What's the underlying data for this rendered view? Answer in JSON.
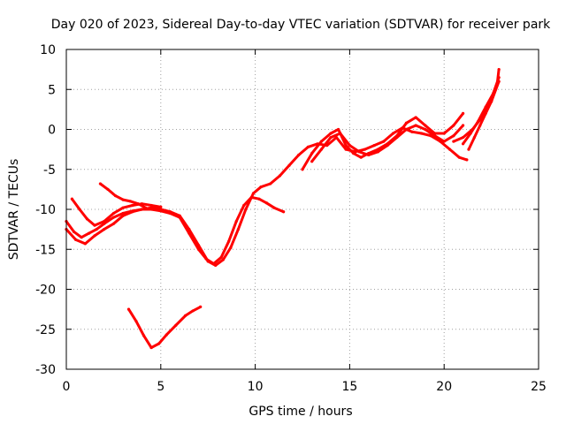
{
  "chart_data": {
    "type": "scatter",
    "title": "Day 020 of 2023, Sidereal Day-to-day VTEC variation (SDTVAR) for receiver park",
    "xlabel": "GPS time / hours",
    "ylabel": "SDTVAR / TECUs",
    "xlim": [
      0,
      25
    ],
    "ylim": [
      -30,
      10
    ],
    "x_ticks": [
      0,
      5,
      10,
      15,
      20,
      25
    ],
    "x_tick_labels": [
      "0",
      "5",
      "10",
      "15",
      "20",
      "25"
    ],
    "y_ticks": [
      -30,
      -25,
      -20,
      -15,
      -10,
      -5,
      0,
      5,
      10
    ],
    "y_tick_labels": [
      "-30",
      "-25",
      "-20",
      "-15",
      "-10",
      "-5",
      "0",
      "5",
      "10"
    ],
    "grid": true,
    "legend": "none",
    "color": "#ff0000",
    "series": [
      {
        "x": [
          0.0,
          0.4,
          0.8,
          1.2,
          1.6,
          2.0,
          2.5,
          3.0,
          3.5,
          4.0,
          4.5,
          5.0,
          5.5,
          6.0,
          6.5,
          7.0,
          7.4,
          7.8,
          8.2,
          8.6,
          9.0,
          9.4,
          9.8,
          10.2,
          10.6,
          11.0,
          11.5
        ],
        "y": [
          -11.5,
          -12.8,
          -13.5,
          -13.0,
          -12.5,
          -11.8,
          -11.0,
          -10.5,
          -10.2,
          -10.0,
          -10.0,
          -10.2,
          -10.5,
          -11.0,
          -13.0,
          -15.0,
          -16.2,
          -16.8,
          -16.0,
          -14.0,
          -11.5,
          -9.5,
          -8.5,
          -8.7,
          -9.2,
          -9.8,
          -10.3
        ]
      },
      {
        "x": [
          0.0,
          0.5,
          1.0,
          1.5,
          2.0,
          2.5,
          3.0,
          3.5,
          4.0,
          4.5,
          5.0,
          5.5,
          6.0,
          6.5,
          7.0,
          7.5,
          7.9,
          8.3,
          8.7,
          9.1,
          9.5,
          9.9,
          10.3,
          10.8,
          11.3,
          11.8,
          12.3,
          12.8,
          13.3,
          13.8,
          14.3,
          14.8,
          15.3,
          15.8,
          16.3,
          16.8,
          17.3,
          17.8,
          18.3,
          18.8,
          19.3,
          19.8,
          20.3,
          20.8,
          21.2
        ],
        "y": [
          -12.5,
          -13.8,
          -14.3,
          -13.3,
          -12.5,
          -11.8,
          -10.8,
          -10.3,
          -10.0,
          -9.8,
          -10.0,
          -10.3,
          -10.8,
          -12.5,
          -14.5,
          -16.5,
          -17.0,
          -16.3,
          -14.8,
          -12.5,
          -10.0,
          -8.0,
          -7.2,
          -6.8,
          -5.8,
          -4.5,
          -3.2,
          -2.2,
          -1.8,
          -2.0,
          -1.0,
          -2.5,
          -2.8,
          -2.5,
          -2.0,
          -1.5,
          -0.5,
          0.2,
          -0.3,
          -0.5,
          -0.8,
          -1.5,
          -2.5,
          -3.5,
          -3.8
        ]
      },
      {
        "x": [
          0.3,
          0.7,
          1.1,
          1.5,
          2.0,
          2.5,
          3.0,
          3.5,
          4.0,
          4.5,
          5.0
        ],
        "y": [
          -8.7,
          -10.0,
          -11.2,
          -12.0,
          -11.5,
          -10.5,
          -9.8,
          -9.5,
          -9.3,
          -9.5,
          -9.7
        ]
      },
      {
        "x": [
          1.8,
          2.2,
          2.6,
          3.0,
          3.4,
          3.8,
          4.2
        ],
        "y": [
          -6.8,
          -7.5,
          -8.3,
          -8.8,
          -9.0,
          -9.3,
          -9.8
        ]
      },
      {
        "x": [
          12.5,
          13.0,
          13.5,
          14.0,
          14.4,
          14.8,
          15.2,
          15.6,
          16.0,
          16.5,
          17.0,
          17.5,
          18.0,
          18.5,
          19.0,
          19.5,
          20.0,
          20.5,
          21.0
        ],
        "y": [
          -5.0,
          -3.0,
          -1.5,
          -0.5,
          0.0,
          -2.0,
          -3.0,
          -3.5,
          -3.0,
          -2.5,
          -1.8,
          -0.8,
          0.8,
          1.5,
          0.5,
          -0.5,
          -0.5,
          0.5,
          2.0
        ]
      },
      {
        "x": [
          13.0,
          13.5,
          14.0,
          14.5,
          15.0,
          15.5,
          16.0,
          16.5,
          17.0,
          17.5,
          18.0,
          18.5,
          19.0,
          19.5,
          20.0,
          20.5,
          21.0
        ],
        "y": [
          -4.0,
          -2.5,
          -1.0,
          -0.5,
          -2.0,
          -2.8,
          -3.2,
          -2.8,
          -2.0,
          -1.0,
          0.0,
          0.5,
          0.0,
          -0.8,
          -1.5,
          -0.8,
          0.5
        ]
      },
      {
        "x": [
          21.3,
          21.6,
          21.9,
          22.2,
          22.5,
          22.8,
          22.9
        ],
        "y": [
          -2.5,
          -1.0,
          0.5,
          2.0,
          3.5,
          5.5,
          7.5
        ]
      },
      {
        "x": [
          21.0,
          21.4,
          21.8,
          22.2,
          22.6,
          22.9
        ],
        "y": [
          -1.8,
          -0.5,
          1.0,
          2.8,
          4.5,
          6.5
        ]
      },
      {
        "x": [
          20.5,
          21.0,
          21.5,
          22.0,
          22.5,
          22.9
        ],
        "y": [
          -1.5,
          -1.0,
          0.0,
          1.5,
          3.5,
          6.0
        ]
      },
      {
        "x": [
          3.3,
          3.7,
          4.1,
          4.5,
          4.9,
          5.3,
          5.8,
          6.3,
          6.7,
          7.1
        ],
        "y": [
          -22.5,
          -24.0,
          -25.8,
          -27.3,
          -26.8,
          -25.7,
          -24.5,
          -23.3,
          -22.7,
          -22.2
        ]
      }
    ]
  }
}
